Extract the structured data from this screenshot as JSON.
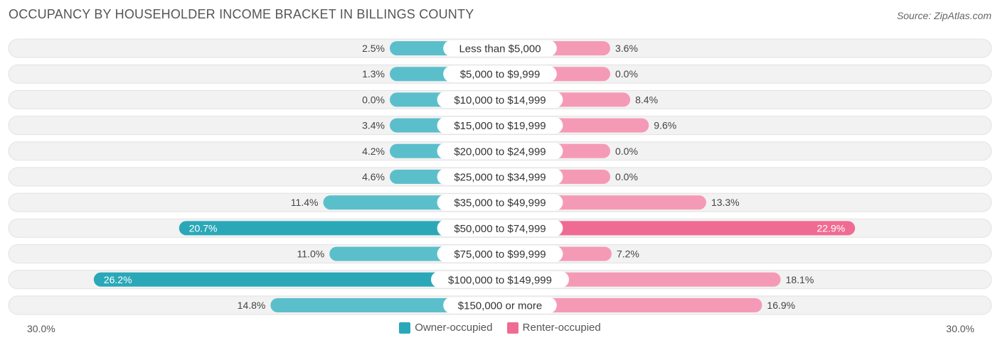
{
  "title": "OCCUPANCY BY HOUSEHOLDER INCOME BRACKET IN BILLINGS COUNTY",
  "source": "Source: ZipAtlas.com",
  "colors": {
    "owner": "#5bbfcb",
    "owner_strong": "#2aa8b8",
    "renter": "#f59ab6",
    "renter_strong": "#f06b94",
    "row_bg": "#f2f2f2",
    "row_border": "#e2e2e2"
  },
  "chart_data": {
    "type": "bar",
    "orientation": "horizontal-diverging",
    "title": "OCCUPANCY BY HOUSEHOLDER INCOME BRACKET IN BILLINGS COUNTY",
    "categories": [
      "Less than $5,000",
      "$5,000 to $9,999",
      "$10,000 to $14,999",
      "$15,000 to $19,999",
      "$20,000 to $24,999",
      "$25,000 to $34,999",
      "$35,000 to $49,999",
      "$50,000 to $74,999",
      "$75,000 to $99,999",
      "$100,000 to $149,999",
      "$150,000 or more"
    ],
    "series": [
      {
        "name": "Owner-occupied",
        "values": [
          2.5,
          1.3,
          0.0,
          3.4,
          4.2,
          4.6,
          11.4,
          20.7,
          11.0,
          26.2,
          14.8
        ]
      },
      {
        "name": "Renter-occupied",
        "values": [
          3.6,
          0.0,
          8.4,
          9.6,
          0.0,
          0.0,
          13.3,
          22.9,
          7.2,
          18.1,
          16.9
        ]
      }
    ],
    "xlim": [
      -30,
      30
    ],
    "axis_labels": {
      "left": "30.0%",
      "right": "30.0%"
    },
    "value_suffix": "%",
    "legend_position": "bottom-center"
  }
}
